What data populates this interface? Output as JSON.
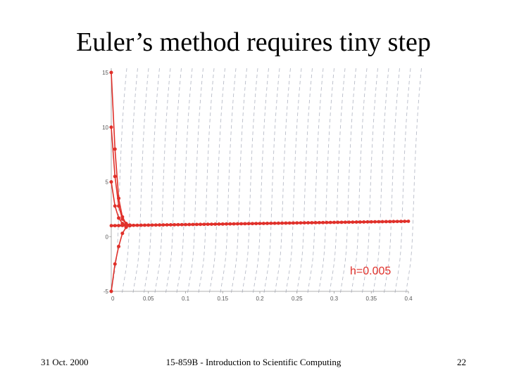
{
  "slide": {
    "title": "Euler’s method requires tiny step",
    "footer_date": "31 Oct. 2000",
    "footer_course": "15-859B - Introduction to Scientific Computing",
    "footer_page": "22"
  },
  "colors": {
    "trajectory": "#e0302a",
    "field": "#b8bcc8",
    "axis": "#999999"
  },
  "chart_data": {
    "type": "line",
    "title": "",
    "xlabel": "",
    "ylabel": "",
    "xlim": [
      0,
      0.4
    ],
    "ylim": [
      -5,
      15
    ],
    "x_ticks": [
      0,
      0.05,
      0.1,
      0.15,
      0.2,
      0.25,
      0.3,
      0.35,
      0.4
    ],
    "x_tick_labels": [
      "0",
      "0.05",
      "0.1",
      "0.15",
      "0.2",
      "0.25",
      "0.3",
      "0.35",
      "0.4"
    ],
    "y_ticks": [
      -5,
      0,
      5,
      10,
      15
    ],
    "y_tick_labels": [
      "-5",
      "0",
      "5",
      "10",
      "15"
    ],
    "annotation": "h=0.005",
    "step": 0.005,
    "x_end": 0.4,
    "equilibrium_start": 1.0,
    "equilibrium_end": 1.4,
    "initial_values": [
      15,
      10,
      5,
      -5
    ],
    "series": [
      {
        "x": [
          0,
          0.005,
          0.01,
          0.015,
          0.02,
          0.025
        ],
        "values": [
          15,
          8.0,
          3.5,
          1.8,
          1.2,
          1.05
        ]
      },
      {
        "x": [
          0,
          0.005,
          0.01,
          0.015,
          0.02,
          0.025
        ],
        "values": [
          10,
          5.5,
          2.8,
          1.6,
          1.15,
          1.04
        ]
      },
      {
        "x": [
          0,
          0.005,
          0.01,
          0.015,
          0.02,
          0.025
        ],
        "values": [
          5,
          2.8,
          1.7,
          1.2,
          1.05,
          1.01
        ]
      },
      {
        "x": [
          0,
          0.005,
          0.01,
          0.015,
          0.02,
          0.025
        ],
        "values": [
          -5,
          -2.5,
          -0.9,
          0.3,
          0.85,
          1.0
        ]
      }
    ],
    "grid": false,
    "direction_field": true
  }
}
